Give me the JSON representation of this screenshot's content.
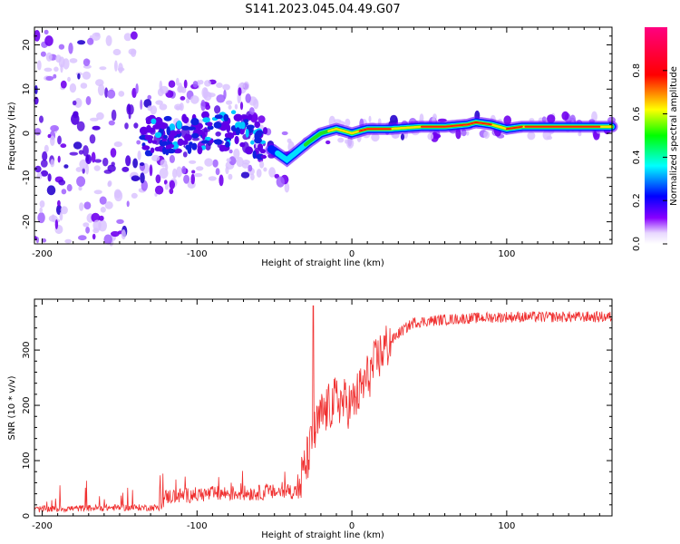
{
  "title": "S141.2023.045.04.49.G07",
  "chart_data": [
    {
      "type": "heatmap",
      "xlabel": "Height of straight line (km)",
      "ylabel": "Frequency (Hz)",
      "xlim": [
        -205,
        168
      ],
      "ylim": [
        -25,
        24
      ],
      "xticks": [
        -200,
        -100,
        0,
        100
      ],
      "yticks": [
        -20,
        -10,
        0,
        10,
        20
      ],
      "grid": false,
      "colorbar": {
        "label": "Normalized spectral amplitude",
        "range": [
          0,
          1
        ],
        "ticks": [
          "0.0",
          "0.2",
          "0.4",
          "0.6",
          "0.8"
        ]
      },
      "ridge": {
        "x": [
          -205,
          -150,
          -100,
          -70,
          -60,
          -50,
          -42,
          -35,
          -28,
          -20,
          -10,
          0,
          10,
          25,
          45,
          60,
          75,
          80,
          90,
          100,
          110,
          130,
          168
        ],
        "y": [
          -1,
          -1,
          0,
          1,
          -2,
          -4,
          -6,
          -4,
          -2,
          0,
          1,
          0,
          1,
          1,
          1.5,
          1.5,
          2,
          2.5,
          2,
          1,
          1.5,
          1.5,
          1.5
        ]
      }
    },
    {
      "type": "line",
      "xlabel": "Height of straight line (km)",
      "ylabel": "SNR (10 * v/v)",
      "xlim": [
        -205,
        168
      ],
      "ylim": [
        0,
        392
      ],
      "xticks": [
        -200,
        -100,
        0,
        100
      ],
      "yticks": [
        0,
        100,
        200,
        300
      ],
      "grid": false,
      "color": "#f03030",
      "trend": {
        "x": [
          -205,
          -150,
          -125,
          -120,
          -90,
          -60,
          -35,
          -30,
          -25,
          -20,
          -10,
          0,
          10,
          20,
          30,
          40,
          60,
          80,
          100,
          168
        ],
        "y": [
          12,
          15,
          15,
          35,
          40,
          42,
          45,
          90,
          140,
          180,
          210,
          200,
          250,
          300,
          330,
          350,
          355,
          358,
          360,
          360
        ]
      },
      "peak": {
        "x": -25,
        "y": 380
      }
    }
  ]
}
